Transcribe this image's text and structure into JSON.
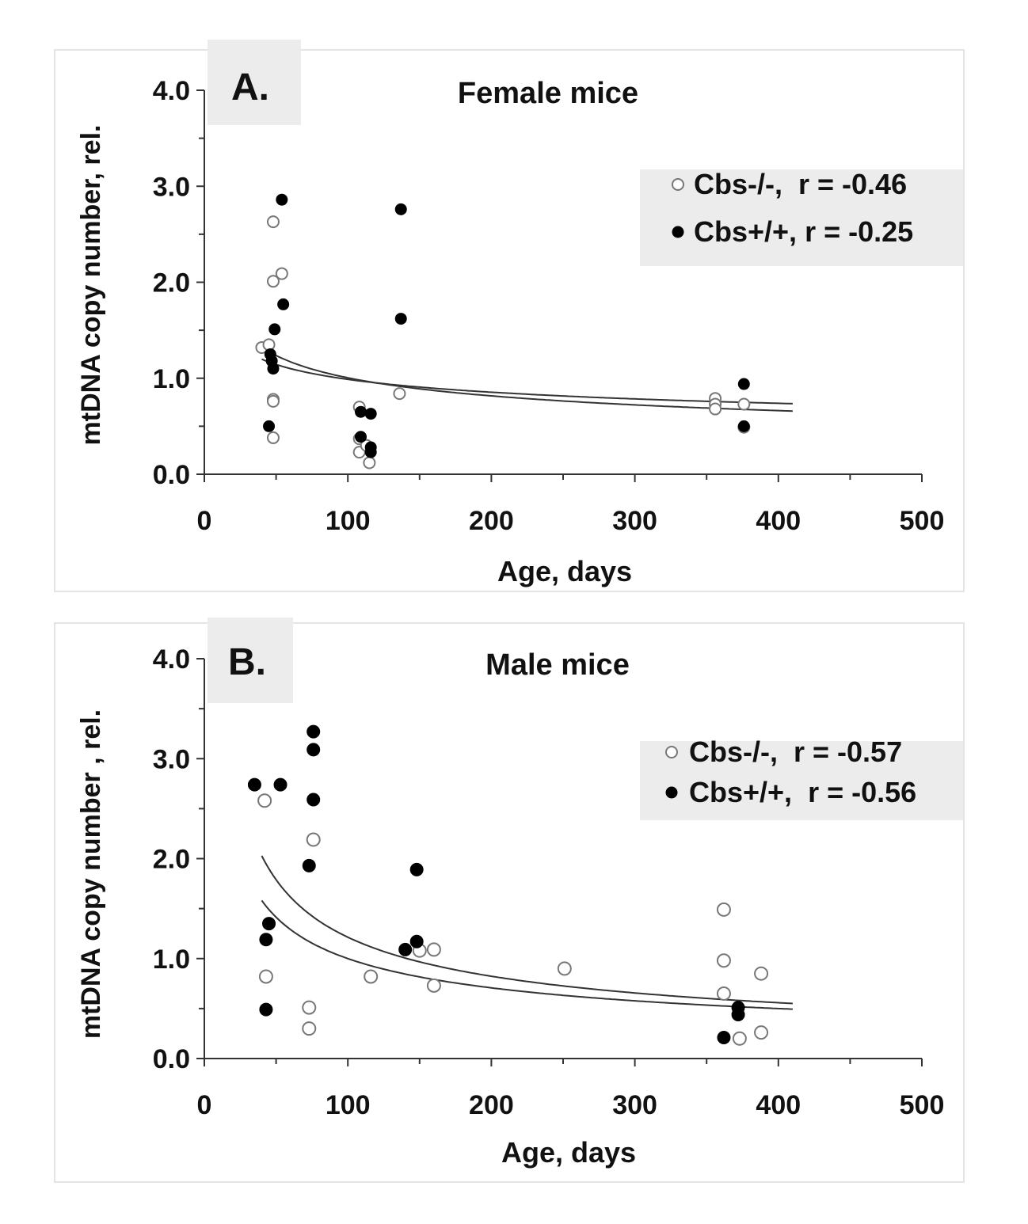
{
  "chart_data": [
    {
      "type": "scatter",
      "panel_label": "A.",
      "title": "Female mice",
      "xlabel": "Age, days",
      "ylabel": "mtDNA copy number, rel.",
      "xlim": [
        0,
        500
      ],
      "ylim": [
        0,
        4
      ],
      "x_ticks": [
        "0",
        "100",
        "200",
        "300",
        "400",
        "500"
      ],
      "y_ticks": [
        "0.0",
        "1.0",
        "2.0",
        "3.0",
        "4.0"
      ],
      "legend_position": "top-right",
      "series": [
        {
          "name": "Cbs-/-",
          "legend_label": "Cbs-/-,  r = -0.46",
          "marker": "open-circle",
          "points": [
            [
              40,
              1.32
            ],
            [
              45,
              1.35
            ],
            [
              48,
              2.63
            ],
            [
              48,
              2.01
            ],
            [
              48,
              0.78
            ],
            [
              48,
              0.76
            ],
            [
              48,
              0.38
            ],
            [
              54,
              2.09
            ],
            [
              108,
              0.7
            ],
            [
              108,
              0.37
            ],
            [
              108,
              0.23
            ],
            [
              113,
              0.3
            ],
            [
              115,
              0.12
            ],
            [
              136,
              0.84
            ],
            [
              356,
              0.79
            ],
            [
              356,
              0.73
            ],
            [
              356,
              0.68
            ],
            [
              376,
              0.73
            ],
            [
              376,
              0.49
            ]
          ],
          "trend": {
            "model": "power",
            "a": 4.0,
            "b": -0.3
          }
        },
        {
          "name": "Cbs+/+",
          "legend_label": "Cbs+/+, r = -0.25",
          "marker": "filled-circle",
          "points": [
            [
              45,
              0.5
            ],
            [
              46,
              1.25
            ],
            [
              47,
              1.18
            ],
            [
              48,
              1.1
            ],
            [
              49,
              1.51
            ],
            [
              54,
              2.86
            ],
            [
              55,
              1.77
            ],
            [
              109,
              0.65
            ],
            [
              109,
              0.39
            ],
            [
              116,
              0.63
            ],
            [
              116,
              0.28
            ],
            [
              116,
              0.23
            ],
            [
              137,
              2.76
            ],
            [
              137,
              1.62
            ],
            [
              376,
              0.94
            ],
            [
              376,
              0.5
            ]
          ],
          "trend": {
            "model": "power",
            "a": 2.6,
            "b": -0.21
          }
        }
      ]
    },
    {
      "type": "scatter",
      "panel_label": "B.",
      "title": "Male mice",
      "xlabel": "Age, days",
      "ylabel": "mtDNA copy number , rel.",
      "xlim": [
        0,
        500
      ],
      "ylim": [
        0,
        4
      ],
      "x_ticks": [
        "0",
        "100",
        "200",
        "300",
        "400",
        "500"
      ],
      "y_ticks": [
        "0.0",
        "1.0",
        "2.0",
        "3.0",
        "4.0"
      ],
      "legend_position": "top-right",
      "series": [
        {
          "name": "Cbs-/-",
          "legend_label": "Cbs-/-,  r = -0.57",
          "marker": "open-circle",
          "points": [
            [
              42,
              2.58
            ],
            [
              43,
              0.82
            ],
            [
              73,
              0.51
            ],
            [
              73,
              0.3
            ],
            [
              76,
              2.19
            ],
            [
              116,
              0.82
            ],
            [
              150,
              1.08
            ],
            [
              160,
              1.09
            ],
            [
              160,
              0.73
            ],
            [
              251,
              0.9
            ],
            [
              362,
              1.49
            ],
            [
              362,
              0.98
            ],
            [
              362,
              0.65
            ],
            [
              373,
              0.2
            ],
            [
              388,
              0.85
            ],
            [
              388,
              0.26
            ]
          ],
          "trend": {
            "model": "power",
            "a": 16.0,
            "b": -0.56
          }
        },
        {
          "name": "Cbs+/+",
          "legend_label": "Cbs+/+,  r = -0.56",
          "marker": "filled-circle",
          "points": [
            [
              35,
              2.74
            ],
            [
              43,
              1.19
            ],
            [
              43,
              0.49
            ],
            [
              45,
              1.35
            ],
            [
              53,
              2.74
            ],
            [
              73,
              1.93
            ],
            [
              76,
              3.27
            ],
            [
              76,
              3.09
            ],
            [
              76,
              2.59
            ],
            [
              140,
              1.09
            ],
            [
              148,
              1.89
            ],
            [
              148,
              1.17
            ],
            [
              362,
              0.21
            ],
            [
              372,
              0.51
            ],
            [
              372,
              0.44
            ]
          ],
          "trend": {
            "model": "power",
            "a": 10.0,
            "b": -0.5
          }
        }
      ]
    }
  ]
}
